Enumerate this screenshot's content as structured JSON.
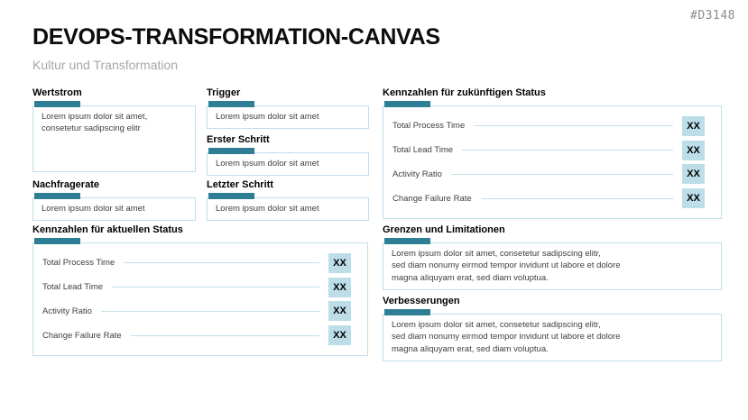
{
  "slide": {
    "code": "#D3148",
    "title": "DEVOPS-TRANSFORMATION-CANVAS",
    "subtitle": "Kultur und Transformation"
  },
  "colors": {
    "accent_teal": "#2e7e96",
    "box_border": "#bfe0ec",
    "badge_background": "#bcdee9",
    "connector_line": "#c6e0ea",
    "body_text": "#404040",
    "subtitle_gray": "#a6a6a6",
    "code_gray": "#8c8c8c"
  },
  "sections": {
    "wertstrom": {
      "heading": "Wertstrom",
      "body": "Lorem ipsum dolor sit amet,\nconsetetur sadipscing elitr"
    },
    "nachfragerate": {
      "heading": "Nachfragerate",
      "body": "Lorem ipsum dolor sit amet"
    },
    "trigger": {
      "heading": "Trigger",
      "body": "Lorem ipsum dolor sit amet"
    },
    "erster_schritt": {
      "heading": "Erster Schritt",
      "body": "Lorem ipsum dolor sit amet"
    },
    "letzter_schritt": {
      "heading": "Letzter Schritt",
      "body": "Lorem ipsum dolor sit amet"
    },
    "kennzahlen_zukunft": {
      "heading": "Kennzahlen für zukünftigen Status"
    },
    "kennzahlen_aktuell": {
      "heading": "Kennzahlen für aktuellen Status"
    },
    "grenzen": {
      "heading": "Grenzen und Limitationen",
      "body": "Lorem ipsum dolor sit amet, consetetur sadipscing elitr,\nsed diam nonumy eirmod tempor invidunt ut labore et dolore\nmagna aliquyam erat, sed diam voluptua."
    },
    "verbesserungen": {
      "heading": "Verbesserungen",
      "body": "Lorem ipsum dolor sit amet, consetetur sadipscing elitr,\nsed diam nonumy eirmod tempor invidunt ut labore et dolore\nmagna aliquyam erat, sed diam voluptua."
    }
  },
  "metrics": {
    "labels": [
      "Total Process Time",
      "Total Lead Time",
      "Activity Ratio",
      "Change Failure Rate"
    ],
    "value_placeholder": "XX"
  }
}
